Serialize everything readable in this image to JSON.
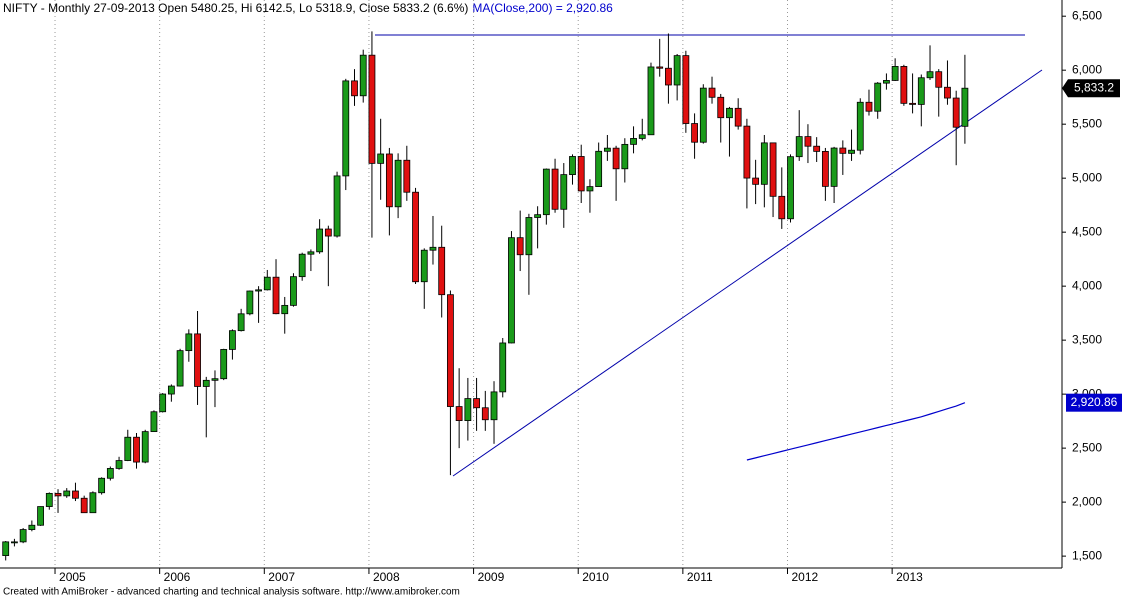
{
  "chart_data": {
    "type": "candlestick",
    "title": "NIFTY - Monthly 27-09-2013 Open 5480.25, Hi 6142.5, Lo 5318.9, Close 5833.2 (6.6%)",
    "ma_text": "MA(Close,200) = 2,920.86",
    "footer": "Created with AmiBroker - advanced charting and technical analysis software. http://www.amibroker.com",
    "categories": [
      null,
      null,
      null,
      null,
      null,
      null,
      "2005",
      null,
      null,
      null,
      null,
      null,
      null,
      null,
      null,
      null,
      null,
      null,
      "2006",
      null,
      null,
      null,
      null,
      null,
      null,
      null,
      null,
      null,
      null,
      null,
      "2007",
      null,
      null,
      null,
      null,
      null,
      null,
      null,
      null,
      null,
      null,
      null,
      "2008",
      null,
      null,
      null,
      null,
      null,
      null,
      null,
      null,
      null,
      null,
      null,
      "2009",
      null,
      null,
      null,
      null,
      null,
      null,
      null,
      null,
      null,
      null,
      null,
      "2010",
      null,
      null,
      null,
      null,
      null,
      null,
      null,
      null,
      null,
      null,
      null,
      "2011",
      null,
      null,
      null,
      null,
      null,
      null,
      null,
      null,
      null,
      null,
      null,
      "2012",
      null,
      null,
      null,
      null,
      null,
      null,
      null,
      null,
      null,
      null,
      null,
      "2013",
      null,
      null,
      null,
      null,
      null,
      null,
      null,
      null
    ],
    "ylim": [
      1390,
      6650
    ],
    "yticks": [
      {
        "value": 1500,
        "label": "1,500"
      },
      {
        "value": 2000,
        "label": "2,000"
      },
      {
        "value": 2500,
        "label": "2,500"
      },
      {
        "value": 3000,
        "label": "3,000"
      },
      {
        "value": 3500,
        "label": "3,500"
      },
      {
        "value": 4000,
        "label": "4,000"
      },
      {
        "value": 4500,
        "label": "4,500"
      },
      {
        "value": 5000,
        "label": "5,000"
      },
      {
        "value": 5500,
        "label": "5,500"
      },
      {
        "value": 6000,
        "label": "6,000"
      },
      {
        "value": 6500,
        "label": "6,500"
      }
    ],
    "up_color": "#1a9a1a",
    "down_color": "#e01010",
    "series": [
      {
        "open": [
          1505,
          1632,
          1632,
          1746,
          1786,
          1959,
          2081,
          2058,
          2103,
          2036,
          1902,
          2087,
          2221,
          2312,
          2385,
          2601,
          2371,
          2653,
          2837,
          3001,
          3075,
          3403,
          3558,
          3071,
          3128,
          3143,
          3414,
          3588,
          3744,
          3955,
          3966,
          4083,
          3745,
          3822,
          4088,
          4296,
          4318,
          4529,
          4464,
          5021,
          5901,
          5763,
          6139,
          5137,
          5224,
          4735,
          5166,
          4870,
          4041,
          4333,
          4360,
          3921,
          2885,
          2755,
          2959,
          2874,
          2763,
          3021,
          3474,
          4449,
          4291,
          4636,
          4662,
          5084,
          4712,
          5033,
          5201,
          4882,
          4922,
          5249,
          5278,
          5087,
          5313,
          5368,
          5402,
          6030,
          6018,
          5863,
          6135,
          5506,
          5333,
          5834,
          5749,
          5560,
          5647,
          5482,
          5001,
          4943,
          5327,
          4832,
          4624,
          5199,
          5385,
          5296,
          5248,
          4924,
          5279,
          5230,
          5259,
          5703,
          5620,
          5880,
          5905,
          6035,
          5693,
          5683,
          5930,
          5986,
          5842,
          5742,
          5480.25
        ],
        "high": [
          1640,
          1660,
          1760,
          1830,
          1960,
          2090,
          2120,
          2130,
          2180,
          2060,
          2100,
          2230,
          2330,
          2420,
          2670,
          2640,
          2670,
          2850,
          3010,
          3090,
          3420,
          3600,
          3770,
          3160,
          3220,
          3420,
          3600,
          3790,
          3960,
          4000,
          4150,
          4250,
          3900,
          4120,
          4310,
          4340,
          4620,
          4560,
          5060,
          5920,
          6010,
          6190,
          6360,
          5550,
          5280,
          5230,
          5300,
          4910,
          4350,
          4650,
          4560,
          3960,
          3240,
          3150,
          3150,
          3030,
          3120,
          3520,
          4510,
          4700,
          4670,
          4740,
          5090,
          5180,
          5140,
          5220,
          5310,
          4990,
          5330,
          5400,
          5300,
          5370,
          5480,
          5550,
          6070,
          6290,
          6340,
          6150,
          6180,
          5600,
          5870,
          5940,
          5780,
          5660,
          5740,
          5550,
          5170,
          5400,
          5330,
          5100,
          5220,
          5630,
          5500,
          5380,
          5280,
          5290,
          5350,
          5450,
          5740,
          5820,
          5890,
          5970,
          6110,
          6050,
          5970,
          5960,
          6230,
          6010,
          6090,
          5810,
          6142.5
        ],
        "low": [
          1460,
          1590,
          1620,
          1730,
          1780,
          1930,
          1900,
          2040,
          2010,
          1900,
          1900,
          2070,
          2200,
          2300,
          2380,
          2310,
          2360,
          2650,
          2830,
          2930,
          3070,
          3300,
          2900,
          2600,
          2880,
          3130,
          3320,
          3580,
          3730,
          3660,
          3960,
          3740,
          3560,
          3810,
          4050,
          4140,
          4300,
          4000,
          4450,
          4890,
          5670,
          5700,
          4450,
          4800,
          4470,
          4630,
          4790,
          4020,
          3790,
          4200,
          3710,
          2250,
          2500,
          2570,
          2660,
          2660,
          2540,
          2970,
          3470,
          4140,
          3920,
          4350,
          4570,
          4680,
          4540,
          4940,
          4770,
          4680,
          4920,
          5160,
          4790,
          4960,
          5230,
          5350,
          5400,
          5940,
          5690,
          5720,
          5420,
          5180,
          5320,
          5690,
          5330,
          5200,
          5450,
          4720,
          4760,
          4730,
          4640,
          4530,
          4590,
          5160,
          5140,
          5150,
          4790,
          4770,
          5030,
          5160,
          5220,
          5580,
          5550,
          5820,
          5900,
          5670,
          5600,
          5480,
          5910,
          5570,
          5680,
          5120,
          5318.9
        ],
        "close": [
          1632,
          1632,
          1746,
          1786,
          1959,
          2081,
          2058,
          2103,
          2036,
          1902,
          2087,
          2221,
          2312,
          2385,
          2601,
          2371,
          2653,
          2837,
          3001,
          3075,
          3403,
          3558,
          3071,
          3128,
          3143,
          3414,
          3588,
          3744,
          3955,
          3966,
          4083,
          3745,
          3822,
          4088,
          4296,
          4318,
          4529,
          4464,
          5021,
          5901,
          5763,
          6139,
          5137,
          5224,
          4735,
          5166,
          4870,
          4041,
          4333,
          4360,
          3921,
          2885,
          2755,
          2959,
          2874,
          2763,
          3021,
          3474,
          4449,
          4291,
          4636,
          4662,
          5084,
          4712,
          5033,
          5201,
          4882,
          4922,
          5249,
          5278,
          5087,
          5313,
          5368,
          5402,
          6030,
          6018,
          5863,
          6135,
          5506,
          5333,
          5834,
          5749,
          5560,
          5647,
          5482,
          5001,
          4943,
          5327,
          4832,
          4624,
          5199,
          5385,
          5296,
          5248,
          4924,
          5279,
          5230,
          5259,
          5703,
          5620,
          5880,
          5905,
          6035,
          5693,
          5683,
          5930,
          5986,
          5842,
          5742,
          5472,
          5833.2
        ],
        "value_labels": [
          null,
          null,
          null,
          null,
          null,
          null,
          null,
          null,
          null,
          null,
          null,
          null,
          null,
          null,
          null,
          null,
          null,
          null,
          null,
          null,
          null,
          null,
          null,
          null,
          null,
          null,
          null,
          null,
          null,
          null,
          null,
          null,
          null,
          null,
          null,
          null,
          null,
          null,
          null,
          null,
          null,
          null,
          null,
          null,
          null,
          null,
          null,
          null,
          null,
          null,
          null,
          null,
          null,
          null,
          null,
          null,
          null,
          null,
          null,
          null,
          null,
          null,
          null,
          null,
          null,
          null,
          null,
          null,
          null,
          null,
          null,
          null,
          null,
          null,
          null,
          null,
          null,
          null,
          null,
          null,
          null,
          null,
          null,
          null,
          null,
          null,
          null,
          null,
          null,
          null,
          null,
          null,
          null,
          null,
          null,
          null,
          null,
          null,
          null,
          null,
          null,
          null,
          null,
          null,
          null,
          null,
          null,
          null,
          null,
          null,
          "5,833.2"
        ]
      },
      {
        "type": "line",
        "color": "#0000cc",
        "values": [
          null,
          null,
          null,
          null,
          null,
          null,
          null,
          null,
          null,
          null,
          null,
          null,
          null,
          null,
          null,
          null,
          null,
          null,
          null,
          null,
          null,
          null,
          null,
          null,
          null,
          null,
          null,
          null,
          null,
          null,
          null,
          null,
          null,
          null,
          null,
          null,
          null,
          null,
          null,
          null,
          null,
          null,
          null,
          null,
          null,
          null,
          null,
          null,
          null,
          null,
          null,
          null,
          null,
          null,
          null,
          null,
          null,
          null,
          null,
          null,
          null,
          null,
          null,
          null,
          null,
          null,
          null,
          null,
          null,
          null,
          null,
          null,
          null,
          null,
          null,
          null,
          null,
          null,
          null,
          null,
          null,
          null,
          null,
          null,
          null,
          2390,
          2410,
          2430,
          2450,
          2470,
          2490,
          2510,
          2530,
          2550,
          2570,
          2590,
          2610,
          2630,
          2650,
          2670,
          2690,
          2710,
          2730,
          2750,
          2770,
          2790,
          2815,
          2840,
          2865,
          2890,
          2920.86
        ],
        "value_labels": [
          null,
          null,
          null,
          null,
          null,
          null,
          null,
          null,
          null,
          null,
          null,
          null,
          null,
          null,
          null,
          null,
          null,
          null,
          null,
          null,
          null,
          null,
          null,
          null,
          null,
          null,
          null,
          null,
          null,
          null,
          null,
          null,
          null,
          null,
          null,
          null,
          null,
          null,
          null,
          null,
          null,
          null,
          null,
          null,
          null,
          null,
          null,
          null,
          null,
          null,
          null,
          null,
          null,
          null,
          null,
          null,
          null,
          null,
          null,
          null,
          null,
          null,
          null,
          null,
          null,
          null,
          null,
          null,
          null,
          null,
          null,
          null,
          null,
          null,
          null,
          null,
          null,
          null,
          null,
          null,
          null,
          null,
          null,
          null,
          null,
          null,
          null,
          null,
          null,
          null,
          null,
          null,
          null,
          null,
          null,
          null,
          null,
          null,
          null,
          null,
          null,
          null,
          null,
          null,
          null,
          null,
          null,
          null,
          null,
          null,
          "2,920.86"
        ]
      }
    ]
  }
}
